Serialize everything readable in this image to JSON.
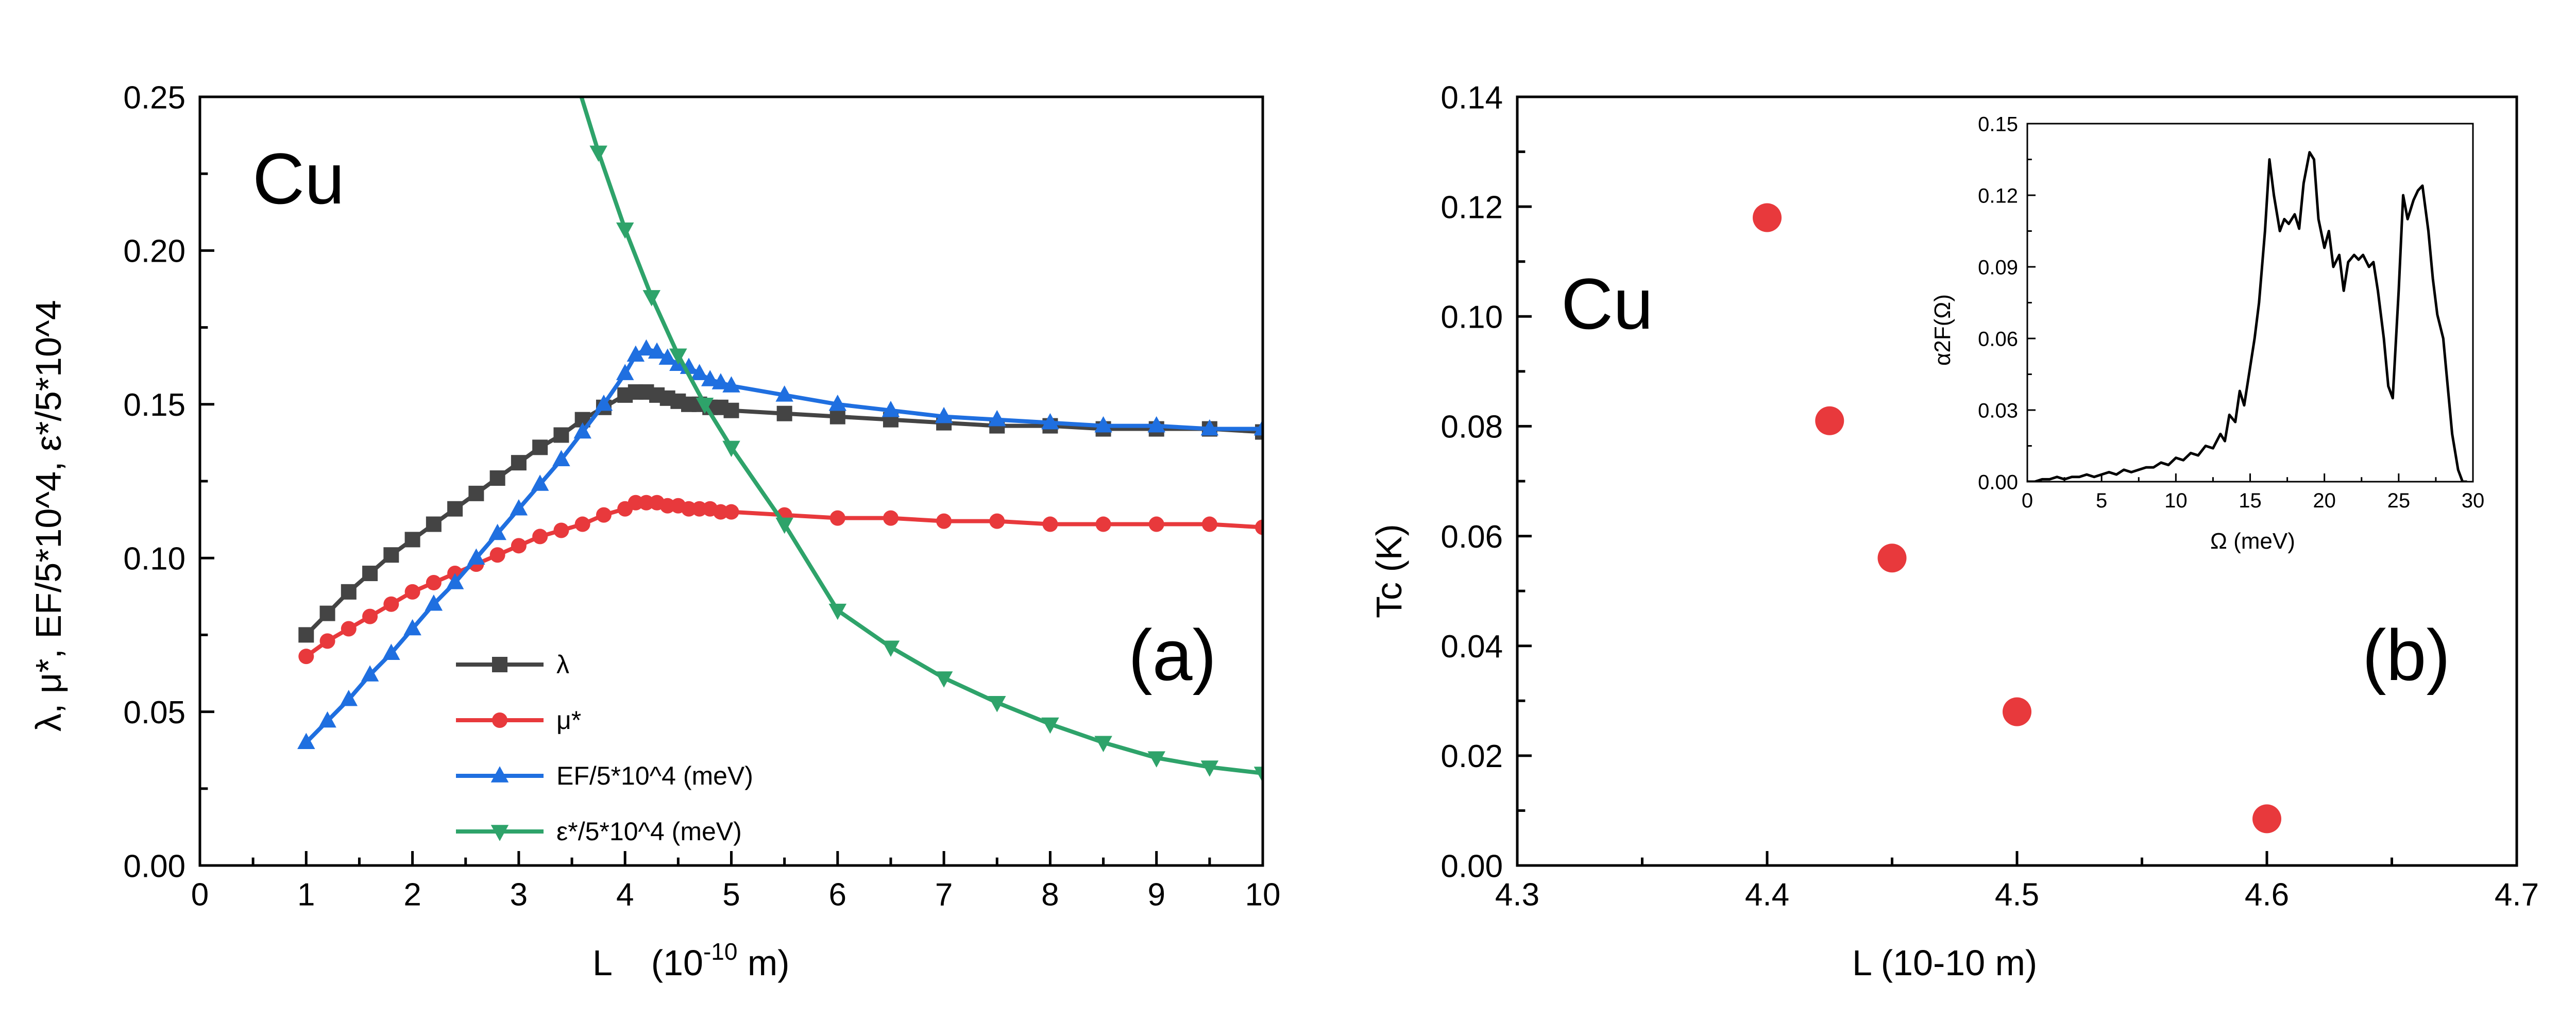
{
  "panel_a": {
    "element_label": "Cu",
    "panel_label": "(a)",
    "xlabel": "L   (10-10 m)",
    "xlabel_main": "L",
    "xlabel_unit_pre": "(10",
    "xlabel_unit_exp": "-10",
    "xlabel_unit_post": " m)",
    "ylabel": "λ, μ*, EF/5*10^4, ε*/5*10^4",
    "legend": [
      {
        "label": "λ",
        "color": "#444444",
        "marker": "square"
      },
      {
        "label": "μ*",
        "color": "#e8393c",
        "marker": "circle"
      },
      {
        "label": "EF/5*10^4  (meV)",
        "color": "#1f6fe0",
        "marker": "triangle-up"
      },
      {
        "label": "ε*/5*10^4  (meV)",
        "color": "#2ea36a",
        "marker": "triangle-down"
      }
    ]
  },
  "panel_b": {
    "element_label": "Cu",
    "panel_label": "(b)",
    "xlabel": "L  (10-10 m)",
    "ylabel": "Tc (K)",
    "inset": {
      "xlabel": "Ω  (meV)",
      "ylabel": "α2F(Ω)"
    }
  },
  "chart_data": [
    {
      "type": "line",
      "xlim": [
        0,
        10
      ],
      "ylim": [
        0,
        0.25
      ],
      "xticks": [
        0,
        1,
        2,
        3,
        4,
        5,
        6,
        7,
        8,
        9,
        10
      ],
      "yticks": [
        "0.00",
        "0.05",
        "0.10",
        "0.15",
        "0.20",
        "0.25"
      ],
      "series": [
        {
          "name": "λ",
          "color": "#444444",
          "marker": "square",
          "x": [
            1.0,
            1.2,
            1.4,
            1.6,
            1.8,
            2.0,
            2.2,
            2.4,
            2.6,
            2.8,
            3.0,
            3.2,
            3.4,
            3.6,
            3.8,
            4.0,
            4.1,
            4.2,
            4.3,
            4.4,
            4.5,
            4.6,
            4.7,
            4.8,
            4.9,
            5.0,
            5.5,
            6.0,
            6.5,
            7.0,
            7.5,
            8.0,
            8.5,
            9.0,
            9.5,
            10.0
          ],
          "y": [
            0.075,
            0.082,
            0.089,
            0.095,
            0.101,
            0.106,
            0.111,
            0.116,
            0.121,
            0.126,
            0.131,
            0.136,
            0.14,
            0.145,
            0.149,
            0.153,
            0.154,
            0.154,
            0.153,
            0.152,
            0.151,
            0.15,
            0.15,
            0.149,
            0.149,
            0.148,
            0.147,
            0.146,
            0.145,
            0.144,
            0.143,
            0.143,
            0.142,
            0.142,
            0.142,
            0.141
          ]
        },
        {
          "name": "μ*",
          "color": "#e8393c",
          "marker": "circle",
          "x": [
            1.0,
            1.2,
            1.4,
            1.6,
            1.8,
            2.0,
            2.2,
            2.4,
            2.6,
            2.8,
            3.0,
            3.2,
            3.4,
            3.6,
            3.8,
            4.0,
            4.1,
            4.2,
            4.3,
            4.4,
            4.5,
            4.6,
            4.7,
            4.8,
            4.9,
            5.0,
            5.5,
            6.0,
            6.5,
            7.0,
            7.5,
            8.0,
            8.5,
            9.0,
            9.5,
            10.0
          ],
          "y": [
            0.068,
            0.073,
            0.077,
            0.081,
            0.085,
            0.089,
            0.092,
            0.095,
            0.098,
            0.101,
            0.104,
            0.107,
            0.109,
            0.111,
            0.114,
            0.116,
            0.118,
            0.118,
            0.118,
            0.117,
            0.117,
            0.116,
            0.116,
            0.116,
            0.115,
            0.115,
            0.114,
            0.113,
            0.113,
            0.112,
            0.112,
            0.111,
            0.111,
            0.111,
            0.111,
            0.11
          ]
        },
        {
          "name": "EF/5*10^4  (meV)",
          "color": "#1f6fe0",
          "marker": "triangle-up",
          "x": [
            1.0,
            1.2,
            1.4,
            1.6,
            1.8,
            2.0,
            2.2,
            2.4,
            2.6,
            2.8,
            3.0,
            3.2,
            3.4,
            3.6,
            3.8,
            4.0,
            4.1,
            4.2,
            4.3,
            4.4,
            4.5,
            4.6,
            4.7,
            4.8,
            4.9,
            5.0,
            5.5,
            6.0,
            6.5,
            7.0,
            7.5,
            8.0,
            8.5,
            9.0,
            9.5,
            10.0
          ],
          "y": [
            0.04,
            0.047,
            0.054,
            0.062,
            0.069,
            0.077,
            0.085,
            0.092,
            0.1,
            0.108,
            0.116,
            0.124,
            0.132,
            0.141,
            0.15,
            0.16,
            0.166,
            0.168,
            0.167,
            0.165,
            0.163,
            0.162,
            0.16,
            0.158,
            0.157,
            0.156,
            0.153,
            0.15,
            0.148,
            0.146,
            0.145,
            0.144,
            0.143,
            0.143,
            0.142,
            0.142
          ]
        },
        {
          "name": "ε*/5*10^4  (meV)",
          "color": "#2ea36a",
          "marker": "triangle-down",
          "x": [
            3.5,
            3.75,
            4.0,
            4.25,
            4.5,
            4.75,
            5.0,
            5.5,
            6.0,
            6.5,
            7.0,
            7.5,
            8.0,
            8.5,
            9.0,
            9.5,
            10.0
          ],
          "y": [
            0.26,
            0.232,
            0.207,
            0.185,
            0.166,
            0.15,
            0.136,
            0.111,
            0.083,
            0.071,
            0.061,
            0.053,
            0.046,
            0.04,
            0.035,
            0.032,
            0.03
          ]
        }
      ]
    },
    {
      "type": "scatter",
      "xlim": [
        4.3,
        4.7
      ],
      "ylim": [
        0,
        0.14
      ],
      "xticks": [
        "4.3",
        "4.4",
        "4.5",
        "4.6",
        "4.7"
      ],
      "yticks": [
        "0.00",
        "0.02",
        "0.04",
        "0.06",
        "0.08",
        "0.10",
        "0.12",
        "0.14"
      ],
      "series": [
        {
          "color": "#e8393c",
          "marker": "circle",
          "x": [
            4.4,
            4.425,
            4.45,
            4.5,
            4.6
          ],
          "y": [
            0.118,
            0.081,
            0.056,
            0.028,
            0.0085
          ]
        }
      ]
    },
    {
      "type": "line",
      "xlim": [
        0,
        30
      ],
      "ylim": [
        0,
        0.15
      ],
      "xticks": [
        "0",
        "5",
        "10",
        "15",
        "20",
        "25",
        "30"
      ],
      "yticks": [
        "0.00",
        "0.03",
        "0.06",
        "0.09",
        "0.12",
        "0.15"
      ],
      "series": [
        {
          "color": "#000000",
          "x": [
            0,
            0.5,
            1,
            1.5,
            2,
            2.5,
            3,
            3.5,
            4,
            4.5,
            5,
            5.5,
            6,
            6.5,
            7,
            7.5,
            8,
            8.5,
            9,
            9.5,
            10,
            10.5,
            11,
            11.5,
            12,
            12.5,
            13,
            13.3,
            13.6,
            14,
            14.3,
            14.6,
            15,
            15.3,
            15.6,
            16,
            16.3,
            16.6,
            17,
            17.3,
            17.6,
            18,
            18.3,
            18.6,
            19,
            19.3,
            19.6,
            20,
            20.3,
            20.6,
            21,
            21.3,
            21.6,
            22,
            22.3,
            22.6,
            23,
            23.3,
            23.6,
            24,
            24.3,
            24.6,
            25,
            25.3,
            25.6,
            26,
            26.3,
            26.6,
            27,
            27.3,
            27.6,
            28,
            28.3,
            28.6,
            29,
            29.3,
            29.6
          ],
          "y": [
            0.0,
            0.0,
            0.001,
            0.001,
            0.002,
            0.001,
            0.002,
            0.002,
            0.003,
            0.002,
            0.003,
            0.004,
            0.003,
            0.005,
            0.004,
            0.005,
            0.006,
            0.006,
            0.008,
            0.007,
            0.01,
            0.009,
            0.012,
            0.011,
            0.015,
            0.014,
            0.02,
            0.017,
            0.028,
            0.025,
            0.038,
            0.032,
            0.048,
            0.06,
            0.075,
            0.105,
            0.135,
            0.12,
            0.105,
            0.11,
            0.108,
            0.112,
            0.106,
            0.125,
            0.138,
            0.135,
            0.11,
            0.098,
            0.105,
            0.09,
            0.095,
            0.08,
            0.092,
            0.095,
            0.093,
            0.095,
            0.09,
            0.092,
            0.08,
            0.06,
            0.04,
            0.035,
            0.08,
            0.12,
            0.11,
            0.118,
            0.122,
            0.124,
            0.105,
            0.085,
            0.07,
            0.06,
            0.04,
            0.02,
            0.005,
            0.0,
            0.0
          ]
        }
      ]
    }
  ]
}
